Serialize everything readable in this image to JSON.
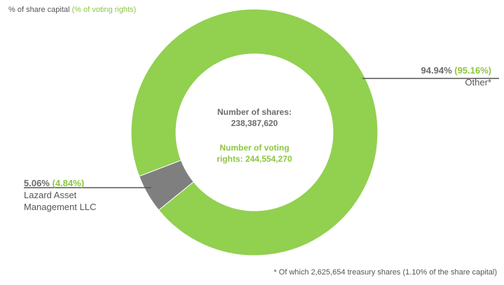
{
  "header": {
    "share_capital_label": "% of share capital",
    "voting_rights_label": "(% of voting rights)"
  },
  "center": {
    "shares_label": "Number of shares:",
    "shares_value": "238,387,620",
    "voting_line1": "Number  of voting",
    "voting_line2": "rights: 244,554,270"
  },
  "footnote": "* Of which 2,625,654  treasury shares  (1.10% of the share capital)",
  "chart_data": {
    "type": "pie",
    "variant": "donut",
    "categories": [
      "Other*",
      "Lazard Asset Management LLC"
    ],
    "series": [
      {
        "name": "% of share capital",
        "values": [
          94.94,
          5.06
        ]
      },
      {
        "name": "% of voting rights",
        "values": [
          95.16,
          4.84
        ]
      }
    ],
    "slices": [
      {
        "label": "Other*",
        "share_capital_pct": 94.94,
        "voting_rights_pct": 95.16,
        "share_text": "94.94%",
        "voting_text": "(95.16%)",
        "color": "#92d050"
      },
      {
        "label_line1": "Lazard Asset",
        "label_line2": "Management LLC",
        "share_capital_pct": 5.06,
        "voting_rights_pct": 4.84,
        "share_text": "5.06%",
        "voting_text": "(4.84%)",
        "color": "#7f7f7f"
      }
    ]
  }
}
